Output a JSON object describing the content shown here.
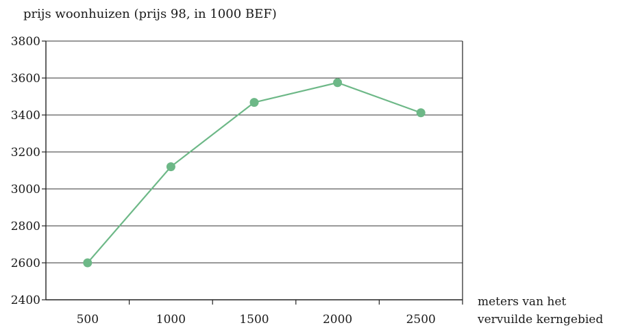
{
  "chart_data": {
    "type": "line",
    "title": "prijs woonhuizen  (prijs 98, in 1000 BEF)",
    "xlabel_lines": [
      "meters van het",
      "vervuilde kerngebied"
    ],
    "categories": [
      "500",
      "1000",
      "1500",
      "2000",
      "2500"
    ],
    "yticks": [
      "3800",
      "3600",
      "3400",
      "3200",
      "3000",
      "2800",
      "2600",
      "2400"
    ],
    "ylim": [
      2400,
      3800
    ],
    "series": [
      {
        "values": [
          2600,
          3120,
          3468,
          3575,
          3412
        ]
      }
    ],
    "grid": true,
    "line_color": "#6db887",
    "marker_color": "#6db887",
    "axis_color": "#222222",
    "grid_color": "#333333"
  }
}
